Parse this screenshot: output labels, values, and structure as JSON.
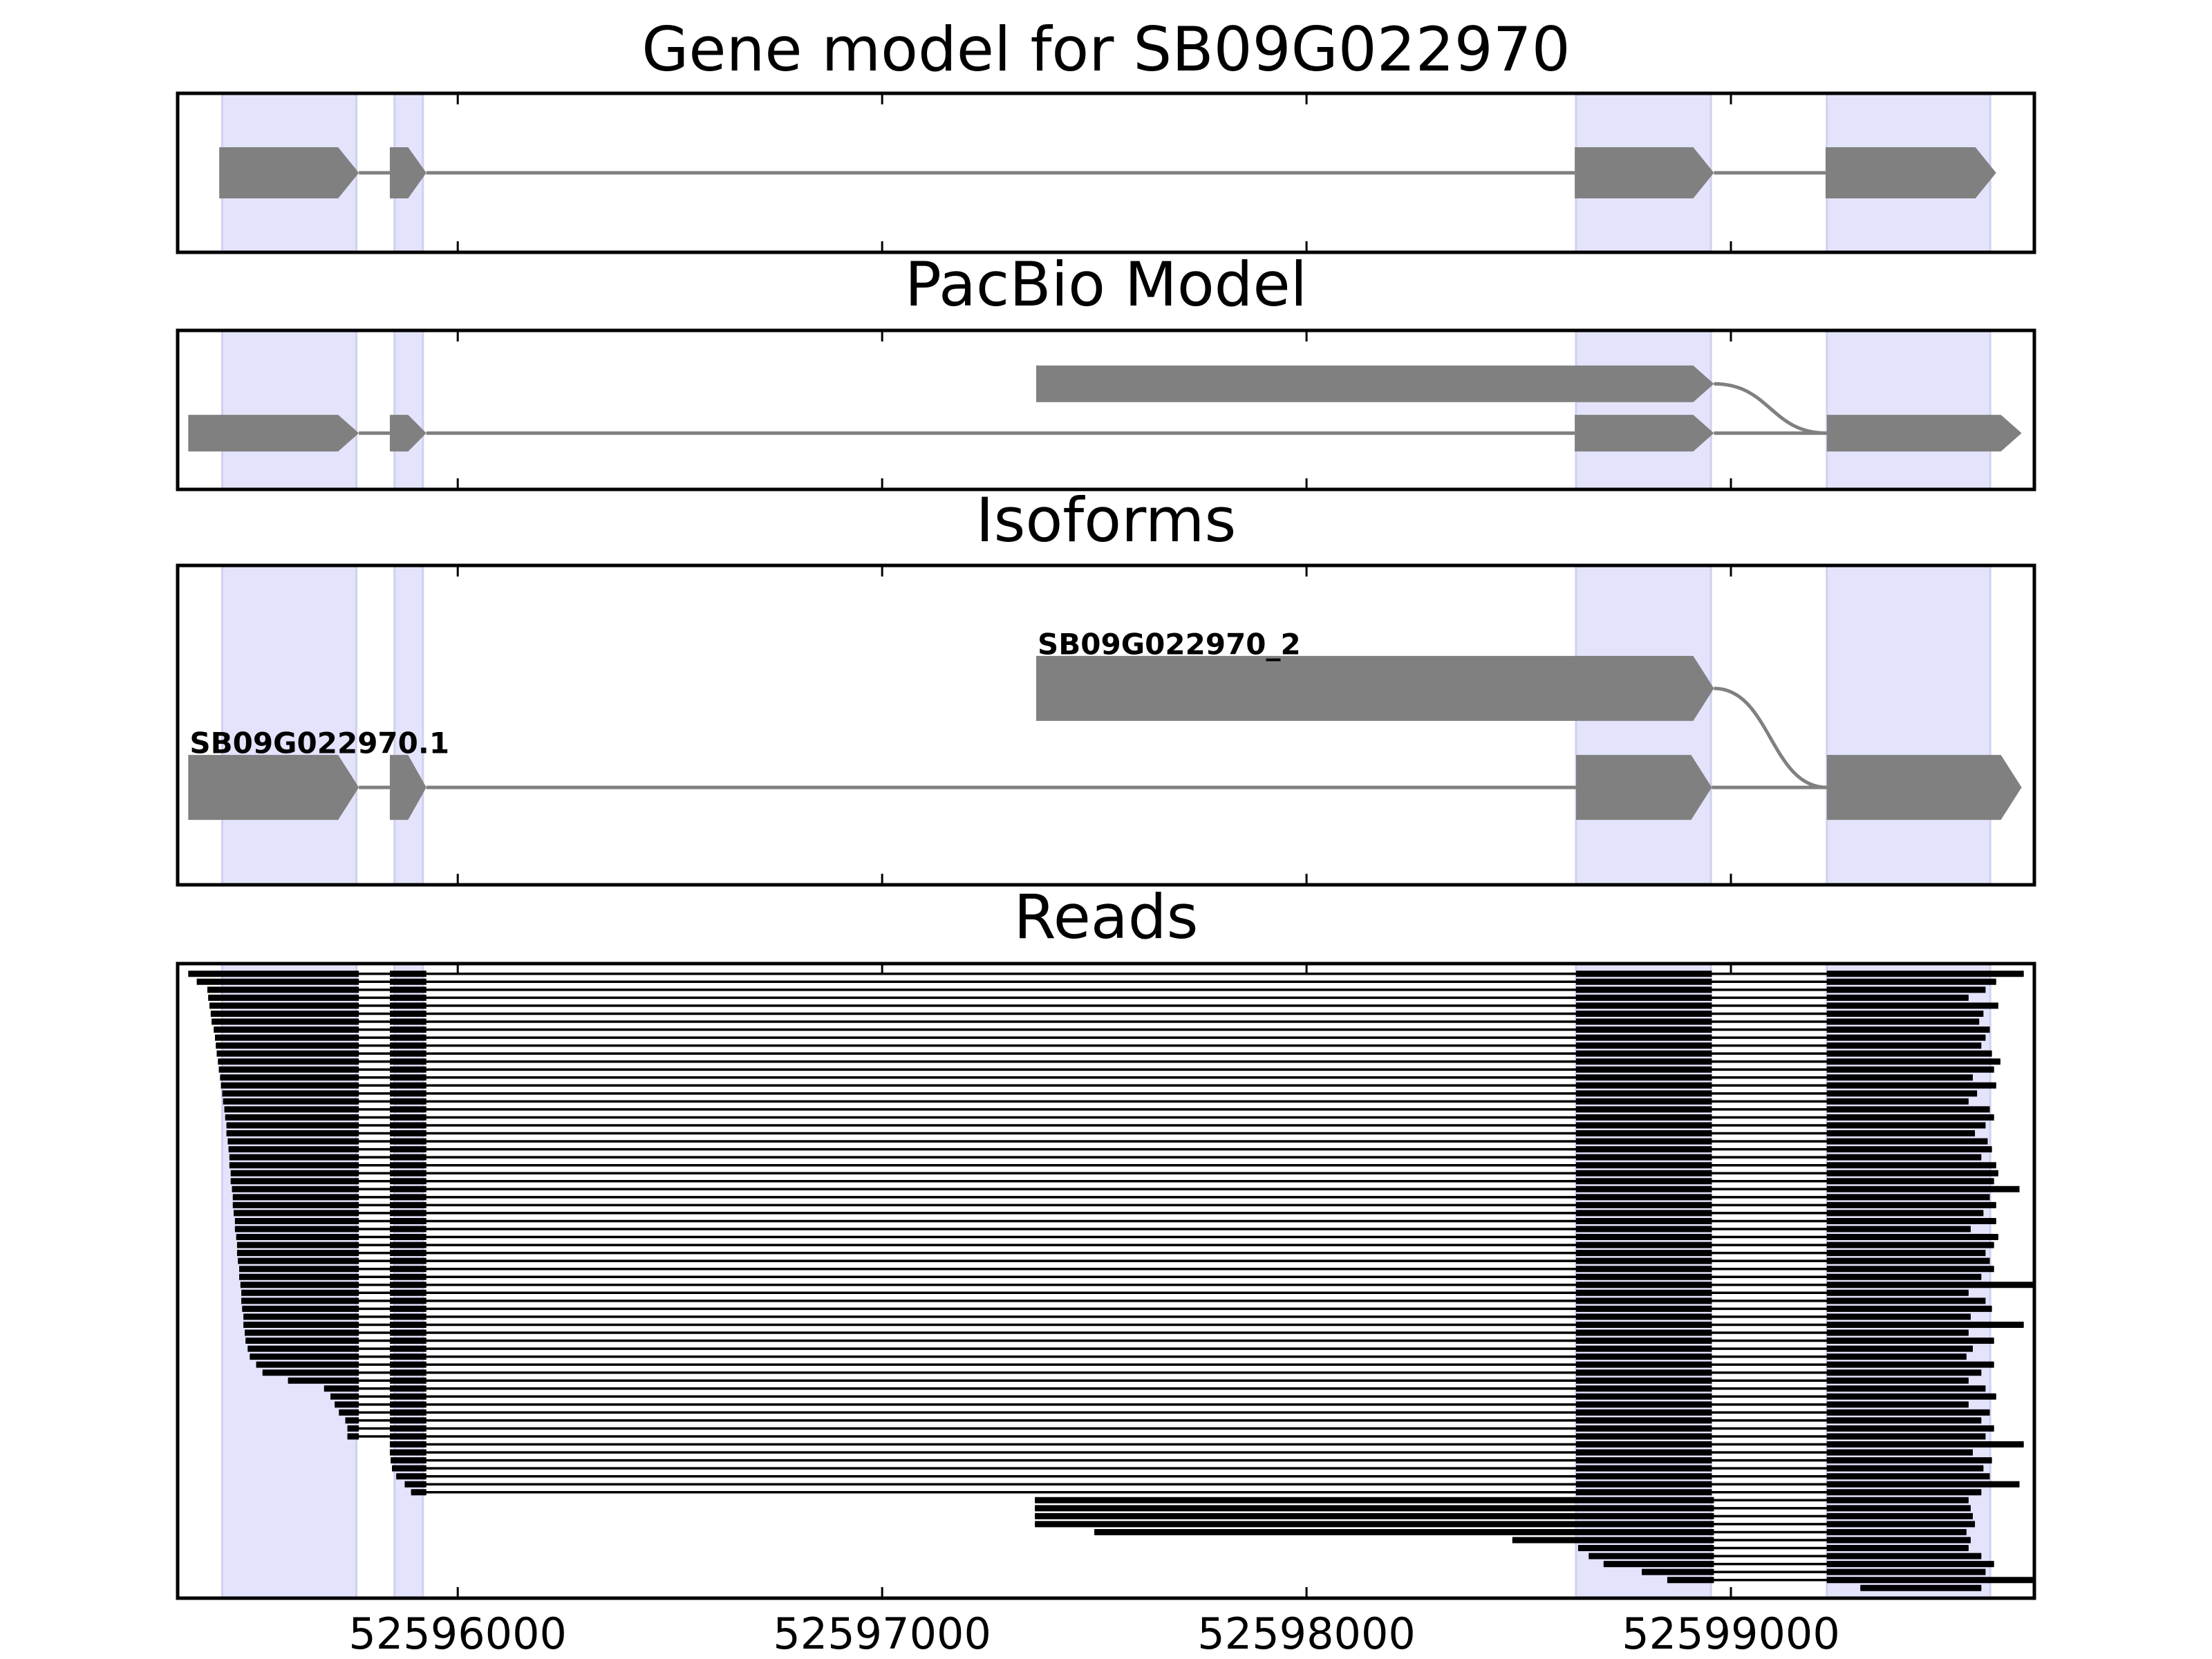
{
  "chart_data": {
    "xlim": [
      52595340,
      52599715
    ],
    "xticks": [
      52596000,
      52597000,
      52598000,
      52599000
    ],
    "highlights": [
      [
        52595445,
        52595761
      ],
      [
        52595851,
        52595918
      ],
      [
        52598635,
        52598953
      ],
      [
        52599226,
        52599611
      ]
    ],
    "panels": [
      {
        "type": "gene-track",
        "title": "Gene model for SB09G022970",
        "transcripts": [
          {
            "exons": [
              [
                52595438,
                52595767
              ],
              [
                52595840,
                52595926
              ],
              [
                52598632,
                52598960
              ],
              [
                52599223,
                52599625
              ]
            ]
          }
        ]
      },
      {
        "type": "gene-track",
        "title": "PacBio Model",
        "transcripts": [
          {
            "exons": [
              [
                52597363,
                52598960
              ],
              [
                52599226,
                52599685
              ]
            ]
          },
          {
            "exons": [
              [
                52595365,
                52595767
              ],
              [
                52595840,
                52595926
              ],
              [
                52598632,
                52598960
              ],
              [
                52599226,
                52599685
              ]
            ]
          }
        ]
      },
      {
        "type": "gene-track",
        "title": "Isoforms",
        "transcripts": [
          {
            "name": "SB09G022970_2",
            "exons": [
              [
                52597363,
                52598960
              ],
              [
                52599226,
                52599685
              ]
            ]
          },
          {
            "name": "SB09G022970.1",
            "exons": [
              [
                52595365,
                52595767
              ],
              [
                52595840,
                52595926
              ],
              [
                52598635,
                52598955
              ],
              [
                52599226,
                52599685
              ]
            ]
          }
        ]
      },
      {
        "type": "reads",
        "title": "Reads",
        "groups": [
          {
            "isoform": 1,
            "reads": [
              [
                52595365,
                52599690
              ],
              [
                52595385,
                52599625
              ],
              [
                52595410,
                52599600
              ],
              [
                52595412,
                52599560
              ],
              [
                52595415,
                52599630
              ],
              [
                52595418,
                52599595
              ],
              [
                52595420,
                52599585
              ],
              [
                52595425,
                52599610
              ],
              [
                52595428,
                52599600
              ],
              [
                52595430,
                52599590
              ],
              [
                52595432,
                52599615
              ],
              [
                52595435,
                52599635
              ],
              [
                52595437,
                52599620
              ],
              [
                52595440,
                52599570
              ],
              [
                52595442,
                52599625
              ],
              [
                52595445,
                52599580
              ],
              [
                52595447,
                52599560
              ],
              [
                52595450,
                52599610
              ],
              [
                52595452,
                52599620
              ],
              [
                52595455,
                52599600
              ],
              [
                52595455,
                52599575
              ],
              [
                52595458,
                52599605
              ],
              [
                52595460,
                52599615
              ],
              [
                52595462,
                52599590
              ],
              [
                52595462,
                52599625
              ],
              [
                52595465,
                52599630
              ],
              [
                52595465,
                52599620
              ],
              [
                52595468,
                52599680
              ],
              [
                52595470,
                52599610
              ],
              [
                52595470,
                52599625
              ],
              [
                52595472,
                52599595
              ],
              [
                52595475,
                52599625
              ],
              [
                52595475,
                52599565
              ],
              [
                52595478,
                52599630
              ],
              [
                52595480,
                52599620
              ],
              [
                52595480,
                52599600
              ],
              [
                52595482,
                52599610
              ],
              [
                52595485,
                52599620
              ],
              [
                52595485,
                52599590
              ],
              [
                52595488,
                52599715
              ],
              [
                52595490,
                52599560
              ],
              [
                52595490,
                52599600
              ],
              [
                52595492,
                52599615
              ],
              [
                52595495,
                52599565
              ],
              [
                52595495,
                52599690
              ],
              [
                52595498,
                52599560
              ],
              [
                52595500,
                52599620
              ],
              [
                52595505,
                52599570
              ],
              [
                52595510,
                52599555
              ],
              [
                52595525,
                52599620
              ],
              [
                52595540,
                52599590
              ],
              [
                52595600,
                52599560
              ],
              [
                52595685,
                52599600
              ],
              [
                52595700,
                52599625
              ],
              [
                52595710,
                52599560
              ],
              [
                52595720,
                52599610
              ],
              [
                52595735,
                52599590
              ],
              [
                52595740,
                52599620
              ],
              [
                52595740,
                52599600
              ],
              [
                52595840,
                52599690
              ],
              [
                52595840,
                52599570
              ],
              [
                52595842,
                52599615
              ],
              [
                52595845,
                52599595
              ],
              [
                52595855,
                52599610
              ],
              [
                52595875,
                52599680
              ],
              [
                52595890,
                52599590
              ]
            ]
          },
          {
            "isoform": 0,
            "reads": [
              [
                52597360,
                52599560
              ],
              [
                52597360,
                52599565
              ],
              [
                52597360,
                52599570
              ],
              [
                52597360,
                52599575
              ],
              [
                52597500,
                52599555
              ],
              [
                52598485,
                52599565
              ],
              [
                52598640,
                52599560
              ],
              [
                52598665,
                52599590
              ],
              [
                52598700,
                52599620
              ],
              [
                52598790,
                52599600
              ],
              [
                52598850,
                52599715
              ],
              [
                52599305,
                52599590
              ]
            ]
          }
        ]
      }
    ]
  }
}
